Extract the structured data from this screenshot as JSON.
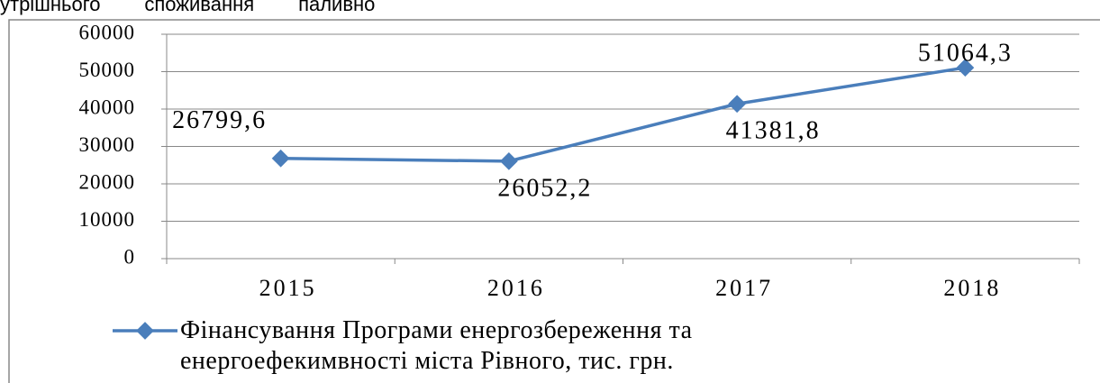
{
  "header_text": "утрішнього        споживання        паливно",
  "chart_data": {
    "type": "line",
    "categories": [
      "2015",
      "2016",
      "2017",
      "2018"
    ],
    "series": [
      {
        "name": "Фінансування Програми енергозбереження та\nенергоефекимвності міста Рівного, тис. грн.",
        "color": "#4a7ebb",
        "values": [
          26799.6,
          26052.2,
          41381.8,
          51064.3
        ],
        "value_labels": [
          "26799,6",
          "26052,2",
          "41381,8",
          "51064,3"
        ]
      }
    ],
    "ylim": [
      0,
      60000
    ],
    "yticks": [
      0,
      10000,
      20000,
      30000,
      40000,
      50000,
      60000
    ],
    "grid": true
  }
}
